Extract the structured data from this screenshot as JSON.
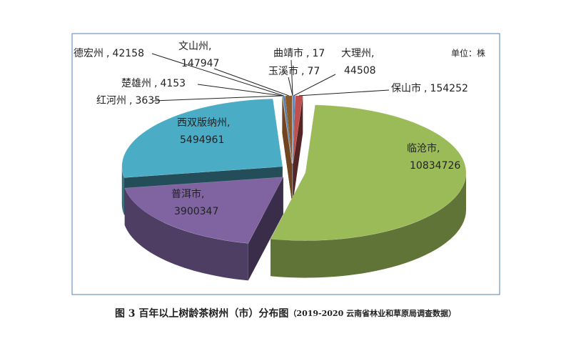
{
  "chart_data": {
    "type": "pie3d",
    "unit_label": "单位：株",
    "caption": "图 3  百年以上树龄茶树州（市）分布图",
    "source": "（2019-2020 云南省林业和草原局调查数据）",
    "label_separator": ",",
    "categories": [
      "玉溪市",
      "曲靖市",
      "大理州",
      "保山市",
      "临沧市",
      "普洱市",
      "西双版纳州",
      "红河州",
      "楚雄州",
      "德宏州",
      "文山州"
    ],
    "values": [
      77,
      17,
      44508,
      154252,
      10834726,
      3900347,
      5494961,
      3635,
      4153,
      42158,
      147947
    ],
    "colors": [
      "#93cddd",
      "#f79646",
      "#4f81bd",
      "#c0504d",
      "#9bbb59",
      "#8064a2",
      "#4bacc6",
      "#f79646",
      "#c3d69b",
      "#4f81bd",
      "#8b5a2b"
    ]
  }
}
